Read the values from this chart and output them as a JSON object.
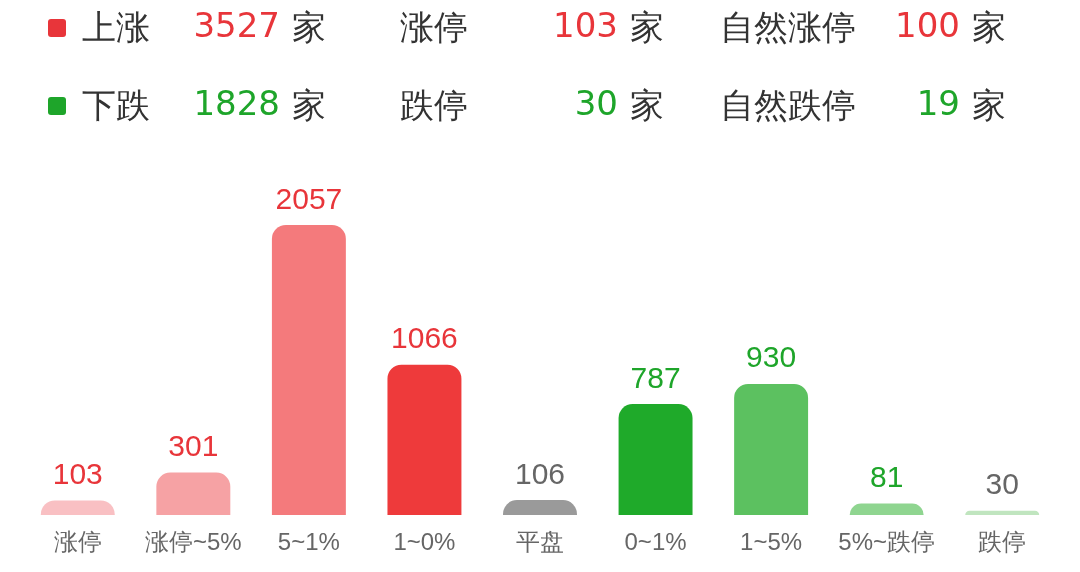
{
  "chart_data": {
    "type": "bar",
    "annotations": [
      "上涨 3527 家",
      "涨停 103 家",
      "自然涨停 100 家",
      "下跌 1828 家",
      "跌停 30 家",
      "自然跌停 19 家"
    ],
    "categories": [
      "涨停",
      "涨停~5%",
      "5~1%",
      "1~0%",
      "平盘",
      "0~1%",
      "1~5%",
      "5%~跌停",
      "跌停"
    ],
    "values": [
      103,
      301,
      2057,
      1066,
      106,
      787,
      930,
      81,
      30
    ],
    "colors": [
      "#f9c0c3",
      "#f6a2a4",
      "#f47a7c",
      "#ee3a3b",
      "#9a9a9a",
      "#1faa2a",
      "#5cc160",
      "#8fd590",
      "#c0e5bf"
    ],
    "data_labels": true
  }
}
